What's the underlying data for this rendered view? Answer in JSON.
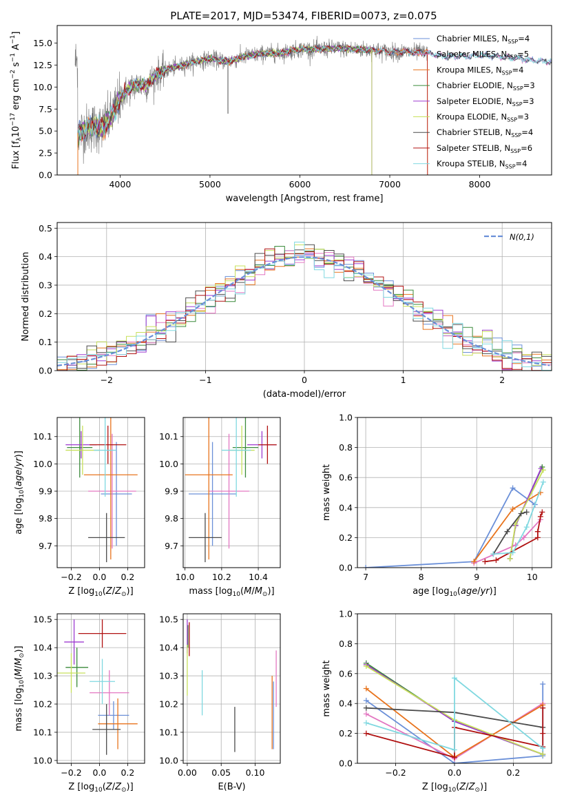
{
  "title": "PLATE=2017, MJD=53474, FIBERID=0073, z=0.075",
  "colors": {
    "Chabrier MILES": "#6a8fd8",
    "Salpeter MILES": "#e377c2",
    "Kroupa MILES": "#e8731c",
    "Chabrier ELODIE": "#3a8a3a",
    "Salpeter ELODIE": "#9d3ad0",
    "Kroupa ELODIE": "#c7e05a",
    "Chabrier STELIB": "#4a4a4a",
    "Salpeter STELIB": "#b01010",
    "Kroupa STELIB": "#7fd8e0",
    "spectrum": "#808080",
    "normal": "#6a8fd8"
  },
  "chart_data": [
    {
      "id": "spectrum",
      "type": "line",
      "xlabel": "wavelength [Angstrom, rest frame]",
      "ylabel": "Flux [f_λ 10^-17 erg cm^-2 s^-1 A^-1]",
      "xlim": [
        3300,
        8800
      ],
      "ylim": [
        0,
        17
      ],
      "xticks": [
        4000,
        5000,
        6000,
        7000,
        8000
      ],
      "yticks": [
        0.0,
        2.5,
        5.0,
        7.5,
        10.0,
        12.5,
        15.0
      ],
      "grid": false,
      "legend_position": "upper-right",
      "legend": [
        {
          "name": "Chabrier MILES",
          "nssp": "4"
        },
        {
          "name": "Salpeter MILES",
          "nssp": "5"
        },
        {
          "name": "Kroupa MILES",
          "nssp": "4"
        },
        {
          "name": "Chabrier ELODIE",
          "nssp": "3"
        },
        {
          "name": "Salpeter ELODIE",
          "nssp": "3"
        },
        {
          "name": "Kroupa ELODIE",
          "nssp": "3"
        },
        {
          "name": "Chabrier STELIB",
          "nssp": "4"
        },
        {
          "name": "Salpeter STELIB",
          "nssp": "6"
        },
        {
          "name": "Kroupa STELIB",
          "nssp": "4"
        }
      ],
      "continuum": [
        [
          3530,
          4.8
        ],
        [
          3700,
          5.5
        ],
        [
          3800,
          5.3
        ],
        [
          3900,
          6.5
        ],
        [
          4000,
          8.8
        ],
        [
          4100,
          9.8
        ],
        [
          4200,
          10.3
        ],
        [
          4300,
          10.2
        ],
        [
          4400,
          11.4
        ],
        [
          4500,
          11.9
        ],
        [
          4600,
          12.2
        ],
        [
          4700,
          12.5
        ],
        [
          4800,
          12.8
        ],
        [
          5000,
          13.2
        ],
        [
          5200,
          12.9
        ],
        [
          5400,
          13.5
        ],
        [
          5600,
          13.8
        ],
        [
          5800,
          13.9
        ],
        [
          6000,
          14.3
        ],
        [
          6200,
          14.3
        ],
        [
          6400,
          14.4
        ],
        [
          6600,
          14.3
        ],
        [
          6800,
          14.2
        ],
        [
          7000,
          14.0
        ],
        [
          7200,
          14.0
        ],
        [
          7400,
          13.9
        ],
        [
          7600,
          13.5
        ],
        [
          7800,
          13.5
        ],
        [
          8000,
          13.6
        ],
        [
          8200,
          13.5
        ],
        [
          8400,
          13.3
        ],
        [
          8600,
          13.0
        ],
        [
          8800,
          12.9
        ]
      ],
      "spectrum_range": [
        3500,
        7420
      ]
    },
    {
      "id": "residuals",
      "type": "histogram",
      "xlabel": "(data-model)/error",
      "ylabel": "Normed distribution",
      "xlim": [
        -2.5,
        2.5
      ],
      "ylim": [
        0,
        0.52
      ],
      "xticks": [
        -2,
        -1,
        0,
        1,
        2
      ],
      "yticks": [
        0.0,
        0.1,
        0.2,
        0.3,
        0.4,
        0.5
      ],
      "bin_width": 0.1,
      "grid": true,
      "legend_position": "upper-right",
      "legend_label": "N(0,1)"
    },
    {
      "id": "age_vs_Z",
      "type": "errorbar",
      "xlabel": "Z [log10(Z/Z⊙)]",
      "ylabel": "age [log10(age/yr)]",
      "xlim": [
        -0.3,
        0.32
      ],
      "ylim": [
        9.62,
        10.17
      ],
      "xticks": [
        -0.2,
        0.0,
        0.2
      ],
      "yticks": [
        9.7,
        9.8,
        9.9,
        10.0,
        10.1
      ],
      "grid": true,
      "points": [
        {
          "model": "Chabrier MILES",
          "x": 0.12,
          "xerr": 0.11,
          "y": 9.89,
          "yerr": 0.19
        },
        {
          "model": "Salpeter MILES",
          "x": 0.09,
          "xerr": 0.17,
          "y": 9.9,
          "yerr": 0.21
        },
        {
          "model": "Kroupa MILES",
          "x": 0.08,
          "xerr": 0.19,
          "y": 9.96,
          "yerr": 0.31
        },
        {
          "model": "Chabrier ELODIE",
          "x": -0.14,
          "xerr": 0.09,
          "y": 10.06,
          "yerr": 0.11
        },
        {
          "model": "Salpeter ELODIE",
          "x": -0.13,
          "xerr": 0.11,
          "y": 10.07,
          "yerr": 0.05
        },
        {
          "model": "Kroupa ELODIE",
          "x": -0.12,
          "xerr": 0.12,
          "y": 10.05,
          "yerr": 0.09
        },
        {
          "model": "Chabrier STELIB",
          "x": 0.05,
          "xerr": 0.13,
          "y": 9.73,
          "yerr": 0.09
        },
        {
          "model": "Salpeter STELIB",
          "x": 0.06,
          "xerr": 0.13,
          "y": 10.07,
          "yerr": 0.07
        },
        {
          "model": "Kroupa STELIB",
          "x": 0.04,
          "xerr": 0.08,
          "y": 10.05,
          "yerr": 0.17
        }
      ]
    },
    {
      "id": "age_vs_mass",
      "type": "errorbar",
      "xlabel": "mass [log10(M/M⊙)]",
      "ylabel": "",
      "xlim": [
        9.99,
        10.52
      ],
      "ylim": [
        9.62,
        10.17
      ],
      "xticks": [
        10.0,
        10.2,
        10.4
      ],
      "yticks": [
        9.7,
        9.8,
        9.9,
        10.0,
        10.1
      ],
      "grid": true,
      "points": [
        {
          "model": "Chabrier MILES",
          "x": 10.15,
          "xerr": 0.13,
          "y": 9.89,
          "yerr": 0.19
        },
        {
          "model": "Salpeter MILES",
          "x": 10.24,
          "xerr": 0.11,
          "y": 9.9,
          "yerr": 0.21
        },
        {
          "model": "Kroupa MILES",
          "x": 10.13,
          "xerr": 0.13,
          "y": 9.96,
          "yerr": 0.31
        },
        {
          "model": "Chabrier ELODIE",
          "x": 10.33,
          "xerr": 0.07,
          "y": 10.06,
          "yerr": 0.11
        },
        {
          "model": "Salpeter ELODIE",
          "x": 10.42,
          "xerr": 0.08,
          "y": 10.07,
          "yerr": 0.05
        },
        {
          "model": "Kroupa ELODIE",
          "x": 10.31,
          "xerr": 0.07,
          "y": 10.05,
          "yerr": 0.09
        },
        {
          "model": "Chabrier STELIB",
          "x": 10.11,
          "xerr": 0.09,
          "y": 9.73,
          "yerr": 0.09
        },
        {
          "model": "Salpeter STELIB",
          "x": 10.45,
          "xerr": 0.05,
          "y": 10.07,
          "yerr": 0.07
        },
        {
          "model": "Kroupa STELIB",
          "x": 10.28,
          "xerr": 0.08,
          "y": 10.05,
          "yerr": 0.17
        }
      ]
    },
    {
      "id": "weight_vs_age",
      "type": "line",
      "xlabel": "age [log10(age/yr)]",
      "ylabel": "mass weight",
      "xlim": [
        6.85,
        10.35
      ],
      "ylim": [
        0,
        1
      ],
      "xticks": [
        7,
        8,
        9,
        10
      ],
      "yticks": [
        0.0,
        0.2,
        0.4,
        0.6,
        0.8,
        1.0
      ],
      "grid": true,
      "series": [
        {
          "model": "Chabrier MILES",
          "x": [
            7.0,
            8.95,
            9.65,
            10.05
          ],
          "y": [
            0.0,
            0.04,
            0.53,
            0.42
          ]
        },
        {
          "model": "Salpeter MILES",
          "x": [
            8.95,
            9.7,
            9.85,
            10.15
          ],
          "y": [
            0.03,
            0.15,
            0.2,
            0.32
          ]
        },
        {
          "model": "Kroupa MILES",
          "x": [
            8.95,
            9.65,
            10.15
          ],
          "y": [
            0.04,
            0.39,
            0.5
          ]
        },
        {
          "model": "Chabrier ELODIE",
          "x": [
            9.6,
            9.7,
            10.18
          ],
          "y": [
            0.06,
            0.28,
            0.67
          ]
        },
        {
          "model": "Salpeter ELODIE",
          "x": [
            9.6,
            9.7,
            10.16
          ],
          "y": [
            0.06,
            0.28,
            0.66
          ]
        },
        {
          "model": "Kroupa ELODIE",
          "x": [
            9.6,
            9.7,
            10.2
          ],
          "y": [
            0.06,
            0.29,
            0.65
          ]
        },
        {
          "model": "Chabrier STELIB",
          "x": [
            9.3,
            9.55,
            9.8,
            9.9
          ],
          "y": [
            0.09,
            0.24,
            0.36,
            0.37
          ]
        },
        {
          "model": "Salpeter STELIB",
          "x": [
            9.15,
            9.35,
            10.1,
            10.1,
            10.15,
            10.18
          ],
          "y": [
            0.04,
            0.05,
            0.2,
            0.24,
            0.34,
            0.37
          ]
        },
        {
          "model": "Kroupa STELIB",
          "x": [
            9.3,
            9.65,
            9.9,
            10.2
          ],
          "y": [
            0.09,
            0.1,
            0.27,
            0.57
          ]
        }
      ]
    },
    {
      "id": "mass_vs_Z",
      "type": "errorbar",
      "xlabel": "Z [log10(Z/Z⊙)]",
      "ylabel": "mass [log10(M/M⊙)]",
      "xlim": [
        -0.3,
        0.32
      ],
      "ylim": [
        9.99,
        10.52
      ],
      "xticks": [
        -0.2,
        0.0,
        0.2
      ],
      "yticks": [
        10.0,
        10.1,
        10.2,
        10.3,
        10.4,
        10.5
      ],
      "grid": true,
      "points": [
        {
          "model": "Chabrier MILES",
          "x": 0.1,
          "xerr": 0.11,
          "y": 10.16,
          "yerr": 0.05
        },
        {
          "model": "Salpeter MILES",
          "x": 0.07,
          "xerr": 0.14,
          "y": 10.24,
          "yerr": 0.08
        },
        {
          "model": "Kroupa MILES",
          "x": 0.13,
          "xerr": 0.14,
          "y": 10.13,
          "yerr": 0.09
        },
        {
          "model": "Chabrier ELODIE",
          "x": -0.16,
          "xerr": 0.08,
          "y": 10.33,
          "yerr": 0.07
        },
        {
          "model": "Salpeter ELODIE",
          "x": -0.18,
          "xerr": 0.07,
          "y": 10.42,
          "yerr": 0.08
        },
        {
          "model": "Kroupa ELODIE",
          "x": -0.2,
          "xerr": 0.1,
          "y": 10.31,
          "yerr": 0.07
        },
        {
          "model": "Chabrier STELIB",
          "x": 0.05,
          "xerr": 0.1,
          "y": 10.11,
          "yerr": 0.09
        },
        {
          "model": "Salpeter STELIB",
          "x": 0.02,
          "xerr": 0.17,
          "y": 10.45,
          "yerr": 0.05
        },
        {
          "model": "Kroupa STELIB",
          "x": 0.02,
          "xerr": 0.09,
          "y": 10.28,
          "yerr": 0.08
        }
      ]
    },
    {
      "id": "mass_vs_ebv",
      "type": "errorbar",
      "xlabel": "E(B-V)",
      "ylabel": "",
      "xlim": [
        -0.006,
        0.137
      ],
      "ylim": [
        9.99,
        10.52
      ],
      "xticks": [
        0.0,
        0.05,
        0.1
      ],
      "yticks": [
        10.0,
        10.1,
        10.2,
        10.3,
        10.4,
        10.5
      ],
      "grid": true,
      "points": [
        {
          "model": "Chabrier MILES",
          "x": 0.127,
          "xerr": 0,
          "y": 10.16,
          "yerr": 0.12
        },
        {
          "model": "Salpeter MILES",
          "x": 0.131,
          "xerr": 0,
          "y": 10.29,
          "yerr": 0.1
        },
        {
          "model": "Kroupa MILES",
          "x": 0.125,
          "xerr": 0,
          "y": 10.17,
          "yerr": 0.13
        },
        {
          "model": "Chabrier ELODIE",
          "x": 0.001,
          "xerr": 0,
          "y": 10.44,
          "yerr": 0.04
        },
        {
          "model": "Salpeter ELODIE",
          "x": 0.0,
          "xerr": 0,
          "y": 10.44,
          "yerr": 0.06
        },
        {
          "model": "Kroupa ELODIE",
          "x": 0.0,
          "xerr": 0,
          "y": 10.32,
          "yerr": 0.09
        },
        {
          "model": "Chabrier STELIB",
          "x": 0.07,
          "xerr": 0,
          "y": 10.11,
          "yerr": 0.08
        },
        {
          "model": "Salpeter STELIB",
          "x": 0.003,
          "xerr": 0,
          "y": 10.43,
          "yerr": 0.06
        },
        {
          "model": "Kroupa STELIB",
          "x": 0.022,
          "xerr": 0,
          "y": 10.24,
          "yerr": 0.08
        }
      ]
    },
    {
      "id": "weight_vs_Z",
      "type": "line",
      "xlabel": "Z [log10(Z/Z⊙)]",
      "ylabel": "mass weight",
      "xlim": [
        -0.33,
        0.33
      ],
      "ylim": [
        0,
        1
      ],
      "xticks": [
        -0.2,
        0.0,
        0.2
      ],
      "yticks": [
        0.0,
        0.2,
        0.4,
        0.6,
        0.8,
        1.0
      ],
      "grid": true,
      "series": [
        {
          "model": "Chabrier MILES",
          "x": [
            -0.3,
            0.0,
            0.3,
            0.3
          ],
          "y": [
            0.42,
            0.0,
            0.05,
            0.53
          ]
        },
        {
          "model": "Salpeter MILES",
          "x": [
            -0.3,
            0.0,
            0.3
          ],
          "y": [
            0.33,
            0.03,
            0.4
          ]
        },
        {
          "model": "Kroupa MILES",
          "x": [
            -0.3,
            0.0,
            0.3
          ],
          "y": [
            0.5,
            0.04,
            0.39
          ]
        },
        {
          "model": "Chabrier ELODIE",
          "x": [
            -0.3,
            0.0,
            0.3
          ],
          "y": [
            0.67,
            0.28,
            0.06
          ]
        },
        {
          "model": "Salpeter ELODIE",
          "x": [
            -0.3,
            0.0,
            0.3
          ],
          "y": [
            0.66,
            0.28,
            0.06
          ]
        },
        {
          "model": "Kroupa ELODIE",
          "x": [
            -0.3,
            0.0,
            0.3
          ],
          "y": [
            0.65,
            0.29,
            0.06
          ]
        },
        {
          "model": "Chabrier STELIB",
          "x": [
            -0.3,
            0.0,
            0.3
          ],
          "y": [
            0.37,
            0.34,
            0.24
          ]
        },
        {
          "model": "Salpeter STELIB",
          "x": [
            -0.3,
            0.0,
            0.0,
            0.3,
            0.3,
            0.3
          ],
          "y": [
            0.2,
            0.04,
            0.24,
            0.11,
            0.37,
            0.2
          ]
        },
        {
          "model": "Kroupa STELIB",
          "x": [
            -0.3,
            0.0,
            0.0,
            0.3
          ],
          "y": [
            0.27,
            0.09,
            0.57,
            0.1
          ]
        }
      ]
    }
  ]
}
